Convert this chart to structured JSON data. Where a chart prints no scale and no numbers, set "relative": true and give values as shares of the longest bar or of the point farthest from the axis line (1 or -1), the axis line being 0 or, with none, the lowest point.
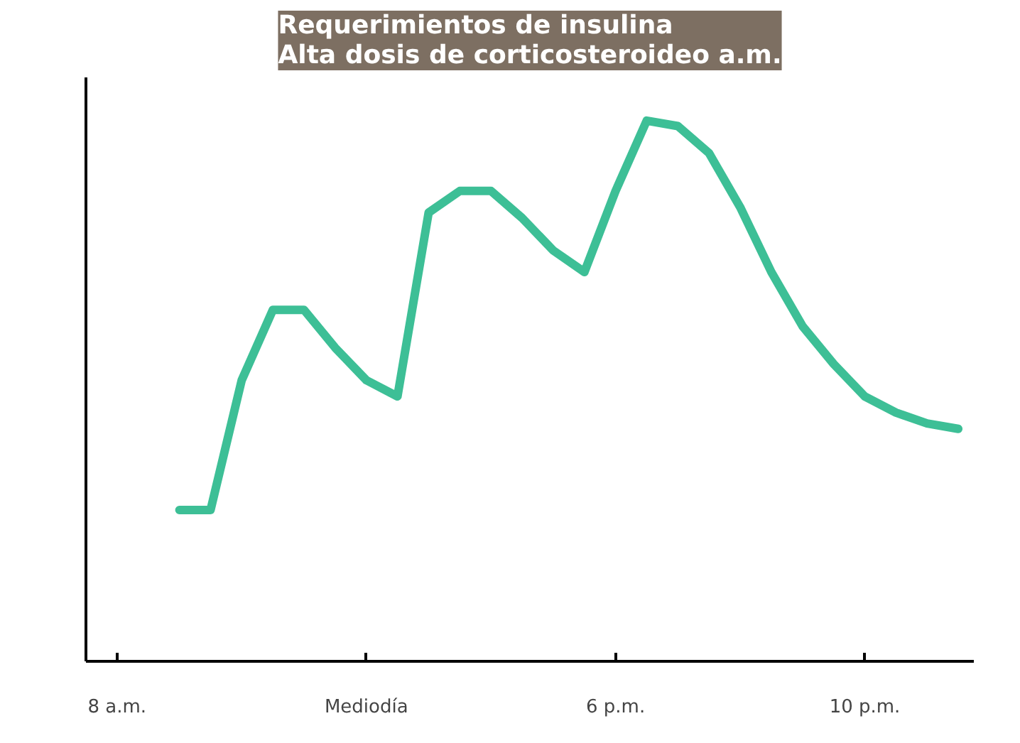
{
  "chart_data": {
    "type": "line",
    "title": "Requerimientos de insulina\nAlta dosis de corticosteroideo a.m.",
    "relative": true,
    "categories": [
      null,
      "8 a.m.",
      null,
      null,
      null,
      null,
      null,
      null,
      null,
      "Mediodía",
      null,
      null,
      null,
      null,
      null,
      null,
      null,
      "6 p.m.",
      null,
      null,
      null,
      null,
      null,
      null,
      null,
      "10 p.m.",
      null,
      null,
      null
    ],
    "series": [
      {
        "color": "#3dbf96",
        "values": [
          null,
          null,
          null,
          0.28,
          0.28,
          0.52,
          0.65,
          0.65,
          0.58,
          0.52,
          0.49,
          0.83,
          0.87,
          0.87,
          0.82,
          0.76,
          0.72,
          0.87,
          1.0,
          0.99,
          0.94,
          0.84,
          0.72,
          0.62,
          0.55,
          0.49,
          0.46,
          0.44,
          0.43
        ]
      }
    ],
    "grid": false
  }
}
